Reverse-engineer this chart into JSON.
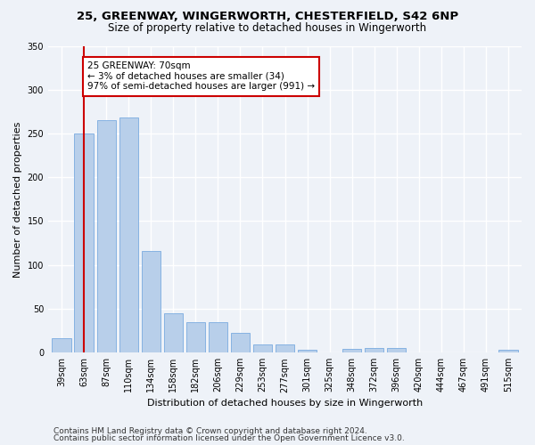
{
  "title1": "25, GREENWAY, WINGERWORTH, CHESTERFIELD, S42 6NP",
  "title2": "Size of property relative to detached houses in Wingerworth",
  "xlabel": "Distribution of detached houses by size in Wingerworth",
  "ylabel": "Number of detached properties",
  "categories": [
    "39sqm",
    "63sqm",
    "87sqm",
    "110sqm",
    "134sqm",
    "158sqm",
    "182sqm",
    "206sqm",
    "229sqm",
    "253sqm",
    "277sqm",
    "301sqm",
    "325sqm",
    "348sqm",
    "372sqm",
    "396sqm",
    "420sqm",
    "444sqm",
    "467sqm",
    "491sqm",
    "515sqm"
  ],
  "values": [
    16,
    250,
    265,
    268,
    116,
    45,
    35,
    35,
    23,
    9,
    9,
    3,
    0,
    4,
    5,
    5,
    0,
    0,
    0,
    0,
    3
  ],
  "bar_color": "#b8cfea",
  "bar_edge_color": "#7aabe0",
  "vline_x": 1,
  "vline_color": "#cc0000",
  "annotation_text": "25 GREENWAY: 70sqm\n← 3% of detached houses are smaller (34)\n97% of semi-detached houses are larger (991) →",
  "annotation_box_color": "white",
  "annotation_box_edge": "#cc0000",
  "ylim": [
    0,
    350
  ],
  "yticks": [
    0,
    50,
    100,
    150,
    200,
    250,
    300,
    350
  ],
  "footer1": "Contains HM Land Registry data © Crown copyright and database right 2024.",
  "footer2": "Contains public sector information licensed under the Open Government Licence v3.0.",
  "bg_color": "#eef2f8",
  "grid_color": "#ffffff",
  "title1_fontsize": 9.5,
  "title2_fontsize": 8.5,
  "xlabel_fontsize": 8,
  "ylabel_fontsize": 8,
  "tick_fontsize": 7,
  "annot_fontsize": 7.5,
  "footer_fontsize": 6.5
}
